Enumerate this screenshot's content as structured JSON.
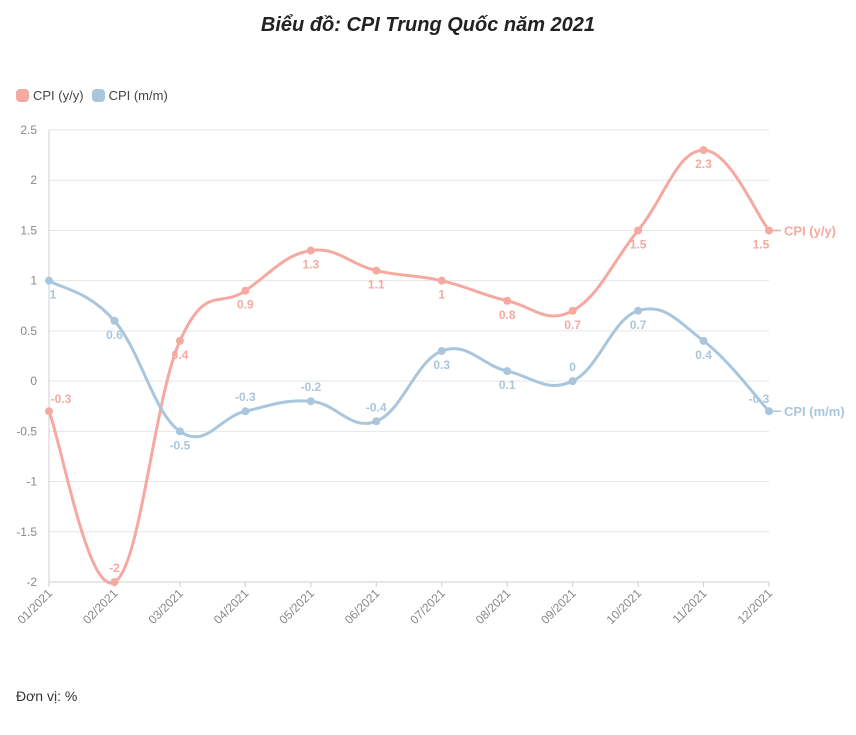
{
  "chart_data": {
    "type": "line",
    "title": "Biểu đồ: CPI Trung Quốc năm 2021",
    "unit_note": "Đơn vị: %",
    "categories": [
      "01/2021",
      "02/2021",
      "03/2021",
      "04/2021",
      "05/2021",
      "06/2021",
      "07/2021",
      "08/2021",
      "09/2021",
      "10/2021",
      "11/2021",
      "12/2021"
    ],
    "ylim": [
      -2,
      2.5
    ],
    "yticks": [
      2.5,
      2,
      1.5,
      1,
      0.5,
      0,
      -0.5,
      -1,
      -1.5,
      -2
    ],
    "legend_position": "top-left",
    "series": [
      {
        "name": "CPI (y/y)",
        "color": "#f5a9a0",
        "values": [
          -0.3,
          -2,
          0.4,
          0.9,
          1.3,
          1.1,
          1,
          0.8,
          0.7,
          1.5,
          2.3,
          1.5
        ],
        "labels": [
          "-0.3",
          "-2",
          "0.4",
          "0.9",
          "1.3",
          "1.1",
          "1",
          "0.8",
          "0.7",
          "1.5",
          "2.3",
          "1.5"
        ]
      },
      {
        "name": "CPI (m/m)",
        "color": "#a9c6dd",
        "values": [
          1,
          0.6,
          -0.5,
          -0.3,
          -0.2,
          -0.4,
          0.3,
          0.1,
          0,
          0.7,
          0.4,
          -0.3
        ],
        "labels": [
          "1",
          "0.6",
          "-0.5",
          "-0.3",
          "-0.2",
          "-0.4",
          "0.3",
          "0.1",
          "0",
          "0.7",
          "0.4",
          "-0.3"
        ]
      }
    ]
  }
}
